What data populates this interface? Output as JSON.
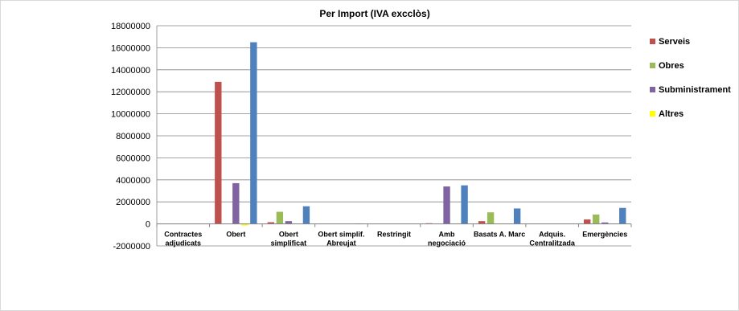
{
  "chart_data": {
    "type": "bar",
    "title": "Per Import (IVA excclòs)",
    "xlabel": "",
    "ylabel": "",
    "ylim": [
      -2000000,
      18000000
    ],
    "yticks": [
      18000000,
      16000000,
      14000000,
      12000000,
      10000000,
      8000000,
      6000000,
      4000000,
      2000000,
      0,
      -2000000
    ],
    "grid": true,
    "legend_position": "right",
    "categories": [
      [
        "Contractes",
        "adjudicats"
      ],
      [
        "Obert"
      ],
      [
        "Obert",
        "simplificat"
      ],
      [
        "Obert simplif.",
        "Abreujat"
      ],
      [
        "Restringit"
      ],
      [
        "Amb",
        "negociació"
      ],
      [
        "Basats A. Marc"
      ],
      [
        "Adquis.",
        "Centralitzada"
      ],
      [
        "Emergències"
      ]
    ],
    "series": [
      {
        "name": "Serveis",
        "color": "#c0504d",
        "values": [
          0,
          12900000,
          150000,
          0,
          0,
          60000,
          250000,
          0,
          400000
        ]
      },
      {
        "name": "Obres",
        "color": "#9bbb59",
        "values": [
          0,
          0,
          1100000,
          0,
          0,
          0,
          1050000,
          0,
          850000
        ]
      },
      {
        "name": "Subministrament",
        "color": "#8064a2",
        "values": [
          0,
          3700000,
          250000,
          0,
          0,
          3400000,
          0,
          0,
          130000
        ]
      },
      {
        "name": "Altres",
        "color": "#ffff00",
        "values": [
          0,
          -150000,
          0,
          0,
          0,
          0,
          0,
          0,
          0
        ]
      },
      {
        "name": "",
        "color": "#4f81bd",
        "values": [
          0,
          16500000,
          1600000,
          30000,
          0,
          3500000,
          1400000,
          0,
          1450000
        ]
      }
    ]
  }
}
